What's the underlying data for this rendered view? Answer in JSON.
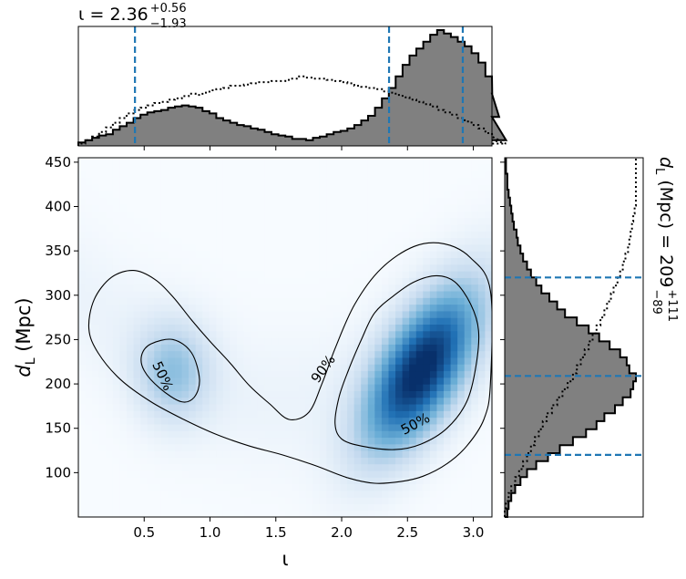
{
  "chart_data": {
    "type": "heatmap",
    "title": {
      "symbol": "ι",
      "equals": " = ",
      "value": "2.36",
      "upper": "+0.56",
      "lower": "−1.93"
    },
    "right_label": {
      "symbol": "d",
      "sub": "L",
      "unit": " (Mpc) = ",
      "value": "209",
      "upper": "+111",
      "lower": "−89"
    },
    "xlabel": "ι",
    "ylabel": {
      "symbol": "d",
      "sub": "L",
      "unit": " (Mpc)"
    },
    "xlim": [
      0.0,
      3.1416
    ],
    "ylim": [
      50,
      455
    ],
    "x_ticks": [
      0.5,
      1.0,
      1.5,
      2.0,
      2.5,
      3.0
    ],
    "x_tick_labels": [
      "0.5",
      "1.0",
      "1.5",
      "2.0",
      "2.5",
      "3.0"
    ],
    "y_ticks": [
      100,
      150,
      200,
      250,
      300,
      350,
      400,
      450
    ],
    "y_tick_labels": [
      "100",
      "150",
      "200",
      "250",
      "300",
      "350",
      "400",
      "450"
    ],
    "colormap": [
      "#f7fbff",
      "#c6dbef",
      "#6baed6",
      "#2171b5",
      "#08306b"
    ],
    "density_modes": [
      {
        "x": 0.72,
        "y": 215,
        "peak": 0.35
      },
      {
        "x": 2.6,
        "y": 215,
        "peak": 1.0
      }
    ],
    "contours": [
      {
        "level": "50%",
        "label_text": "50%",
        "regions": [
          {
            "points": [
              [
                0.55,
                245
              ],
              [
                0.72,
                250
              ],
              [
                0.86,
                235
              ],
              [
                0.92,
                205
              ],
              [
                0.88,
                185
              ],
              [
                0.78,
                180
              ],
              [
                0.62,
                195
              ],
              [
                0.5,
                215
              ],
              [
                0.48,
                232
              ]
            ]
          },
          {
            "points": [
              [
                2.4,
                300
              ],
              [
                2.55,
                315
              ],
              [
                2.72,
                322
              ],
              [
                2.86,
                315
              ],
              [
                2.98,
                290
              ],
              [
                3.04,
                260
              ],
              [
                3.02,
                220
              ],
              [
                2.95,
                180
              ],
              [
                2.8,
                150
              ],
              [
                2.6,
                132
              ],
              [
                2.4,
                126
              ],
              [
                2.15,
                130
              ],
              [
                2.0,
                138
              ],
              [
                1.95,
                155
              ],
              [
                1.98,
                185
              ],
              [
                2.05,
                215
              ],
              [
                2.15,
                250
              ],
              [
                2.25,
                280
              ]
            ]
          }
        ],
        "labels": [
          {
            "x": 0.64,
            "y": 209,
            "angle": 65
          },
          {
            "x": 2.56,
            "y": 155,
            "angle": -28
          }
        ]
      },
      {
        "level": "90%",
        "label_text": "90%",
        "regions": [
          {
            "points": [
              [
                0.12,
                295
              ],
              [
                0.25,
                320
              ],
              [
                0.42,
                328
              ],
              [
                0.58,
                318
              ],
              [
                0.72,
                298
              ],
              [
                0.86,
                272
              ],
              [
                1.0,
                248
              ],
              [
                1.15,
                224
              ],
              [
                1.3,
                198
              ],
              [
                1.45,
                178
              ],
              [
                1.6,
                160
              ],
              [
                1.75,
                168
              ],
              [
                1.85,
                200
              ],
              [
                1.95,
                240
              ],
              [
                2.1,
                290
              ],
              [
                2.3,
                330
              ],
              [
                2.55,
                355
              ],
              [
                2.78,
                358
              ],
              [
                2.98,
                342
              ],
              [
                3.13,
                305
              ],
              [
                3.13,
                200
              ],
              [
                3.08,
                160
              ],
              [
                2.95,
                130
              ],
              [
                2.8,
                110
              ],
              [
                2.62,
                96
              ],
              [
                2.45,
                90
              ],
              [
                2.25,
                88
              ],
              [
                2.05,
                94
              ],
              [
                1.8,
                108
              ],
              [
                1.55,
                120
              ],
              [
                1.3,
                130
              ],
              [
                1.05,
                143
              ],
              [
                0.8,
                160
              ],
              [
                0.55,
                180
              ],
              [
                0.32,
                205
              ],
              [
                0.15,
                235
              ],
              [
                0.08,
                262
              ]
            ]
          }
        ],
        "labels": [
          {
            "x": 1.86,
            "y": 217,
            "angle": -54
          }
        ]
      }
    ],
    "iota_histogram": {
      "bin_start": 0.0,
      "bin_width": 0.0524,
      "posterior": [
        0.03,
        0.05,
        0.07,
        0.09,
        0.1,
        0.14,
        0.17,
        0.2,
        0.24,
        0.27,
        0.29,
        0.3,
        0.31,
        0.33,
        0.34,
        0.35,
        0.34,
        0.33,
        0.3,
        0.28,
        0.24,
        0.22,
        0.2,
        0.18,
        0.17,
        0.15,
        0.14,
        0.12,
        0.1,
        0.09,
        0.08,
        0.06,
        0.06,
        0.05,
        0.07,
        0.08,
        0.1,
        0.12,
        0.13,
        0.15,
        0.18,
        0.22,
        0.26,
        0.33,
        0.41,
        0.5,
        0.6,
        0.7,
        0.78,
        0.84,
        0.9,
        0.96,
        1.0,
        0.97,
        0.94,
        0.9,
        0.86,
        0.8,
        0.72,
        0.6,
        0.45,
        0.25,
        0.05
      ],
      "prior": [
        0.02,
        0.05,
        0.08,
        0.12,
        0.16,
        0.2,
        0.24,
        0.28,
        0.31,
        0.33,
        0.35,
        0.37,
        0.38,
        0.4,
        0.41,
        0.43,
        0.45,
        0.44,
        0.46,
        0.48,
        0.49,
        0.5,
        0.52,
        0.52,
        0.53,
        0.54,
        0.55,
        0.55,
        0.56,
        0.56,
        0.57,
        0.58,
        0.6,
        0.59,
        0.58,
        0.58,
        0.57,
        0.56,
        0.55,
        0.54,
        0.52,
        0.51,
        0.5,
        0.49,
        0.47,
        0.46,
        0.44,
        0.42,
        0.4,
        0.38,
        0.36,
        0.34,
        0.31,
        0.29,
        0.27,
        0.24,
        0.21,
        0.18,
        0.15,
        0.11,
        0.08,
        0.05,
        0.02
      ],
      "markers": [
        0.43,
        2.36,
        2.92
      ]
    },
    "dl_histogram": {
      "bin_start": 50,
      "bin_width": 9,
      "posterior": [
        0.02,
        0.03,
        0.05,
        0.08,
        0.12,
        0.17,
        0.24,
        0.33,
        0.42,
        0.52,
        0.62,
        0.7,
        0.76,
        0.84,
        0.9,
        0.96,
        0.98,
        1.0,
        0.95,
        0.93,
        0.88,
        0.8,
        0.72,
        0.64,
        0.55,
        0.46,
        0.4,
        0.34,
        0.28,
        0.24,
        0.2,
        0.17,
        0.14,
        0.12,
        0.1,
        0.09,
        0.07,
        0.06,
        0.05,
        0.04,
        0.03,
        0.02,
        0.02,
        0.01,
        0.01
      ],
      "prior": [
        0.0,
        0.01,
        0.03,
        0.05,
        0.08,
        0.11,
        0.14,
        0.17,
        0.2,
        0.23,
        0.26,
        0.29,
        0.32,
        0.36,
        0.4,
        0.44,
        0.48,
        0.52,
        0.55,
        0.58,
        0.61,
        0.64,
        0.67,
        0.7,
        0.73,
        0.76,
        0.78,
        0.81,
        0.83,
        0.86,
        0.88,
        0.9,
        0.92,
        0.94,
        0.95,
        0.96,
        0.97,
        0.98,
        0.99,
        1.0,
        1.0,
        1.0,
        1.0,
        1.0,
        1.0
      ],
      "markers": [
        120,
        209,
        320
      ]
    },
    "colors": {
      "hist_fill": "#808080",
      "hist_edge": "#000000",
      "marker": "#1f77b4",
      "contour": "#000000"
    }
  }
}
